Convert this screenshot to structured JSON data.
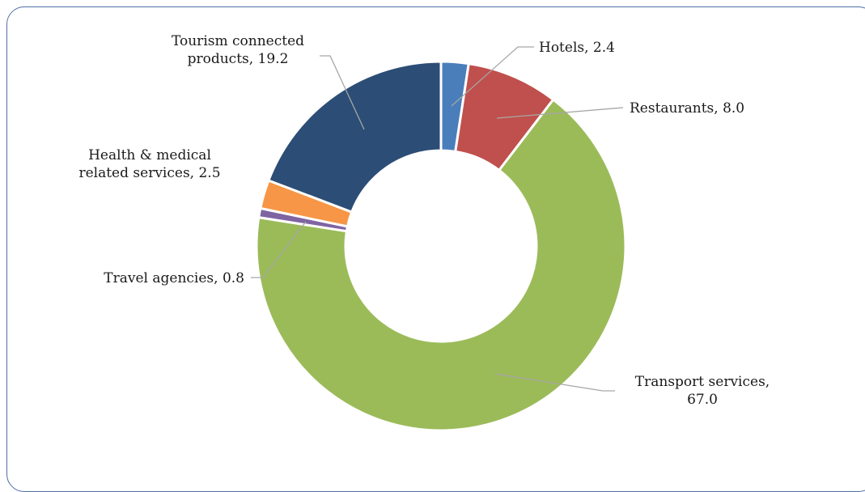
{
  "chart_data": {
    "type": "pie",
    "variant": "donut",
    "slices": [
      {
        "label": "Hotels",
        "value": 2.4,
        "color": "#4a7ebb",
        "label_lines": [
          "Hotels, 2.4"
        ]
      },
      {
        "label": "Restaurants",
        "value": 8.0,
        "color": "#c0504d",
        "label_lines": [
          "Restaurants, 8.0"
        ]
      },
      {
        "label": "Transport services",
        "value": 67.0,
        "color": "#9bbb59",
        "label_lines": [
          "Transport services,",
          "67.0"
        ]
      },
      {
        "label": "Travel agencies",
        "value": 0.8,
        "color": "#8064a2",
        "label_lines": [
          "Travel agencies, 0.8"
        ]
      },
      {
        "label": "Health & medical related services",
        "value": 2.5,
        "color": "#f79646",
        "label_lines": [
          "Health & medical",
          "related services, 2.5"
        ]
      },
      {
        "label": "Tourism connected products",
        "value": 19.2,
        "color": "#2c4d75",
        "label_lines": [
          "Tourism connected",
          "products, 19.2"
        ]
      }
    ],
    "legend": "none",
    "data_labels": "outside-with-leader-lines"
  }
}
